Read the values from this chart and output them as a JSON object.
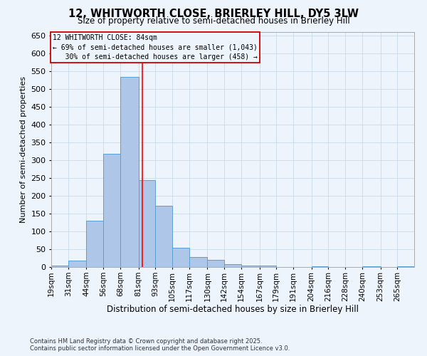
{
  "title": "12, WHITWORTH CLOSE, BRIERLEY HILL, DY5 3LW",
  "subtitle": "Size of property relative to semi-detached houses in Brierley Hill",
  "xlabel": "Distribution of semi-detached houses by size in Brierley Hill",
  "ylabel": "Number of semi-detached properties",
  "footnote1": "Contains HM Land Registry data © Crown copyright and database right 2025.",
  "footnote2": "Contains public sector information licensed under the Open Government Licence v3.0.",
  "bin_labels": [
    "19sqm",
    "31sqm",
    "44sqm",
    "56sqm",
    "68sqm",
    "81sqm",
    "93sqm",
    "105sqm",
    "117sqm",
    "130sqm",
    "142sqm",
    "154sqm",
    "167sqm",
    "179sqm",
    "191sqm",
    "204sqm",
    "216sqm",
    "228sqm",
    "240sqm",
    "253sqm",
    "265sqm"
  ],
  "bar_values": [
    5,
    18,
    130,
    318,
    535,
    245,
    172,
    55,
    28,
    20,
    8,
    5,
    4,
    0,
    0,
    3,
    0,
    0,
    2,
    0,
    2
  ],
  "bar_color": "#aec6e8",
  "bar_edgecolor": "#5a9fd4",
  "property_line_x": 84,
  "property_sqm": 84,
  "pct_smaller": 69,
  "count_smaller": 1043,
  "pct_larger": 30,
  "count_larger": 458,
  "annotation_box_color": "#cc0000",
  "grid_color": "#c8daea",
  "background_color": "#eef4fb",
  "ylim": [
    0,
    660
  ],
  "yticks": [
    0,
    50,
    100,
    150,
    200,
    250,
    300,
    350,
    400,
    450,
    500,
    550,
    600,
    650
  ]
}
